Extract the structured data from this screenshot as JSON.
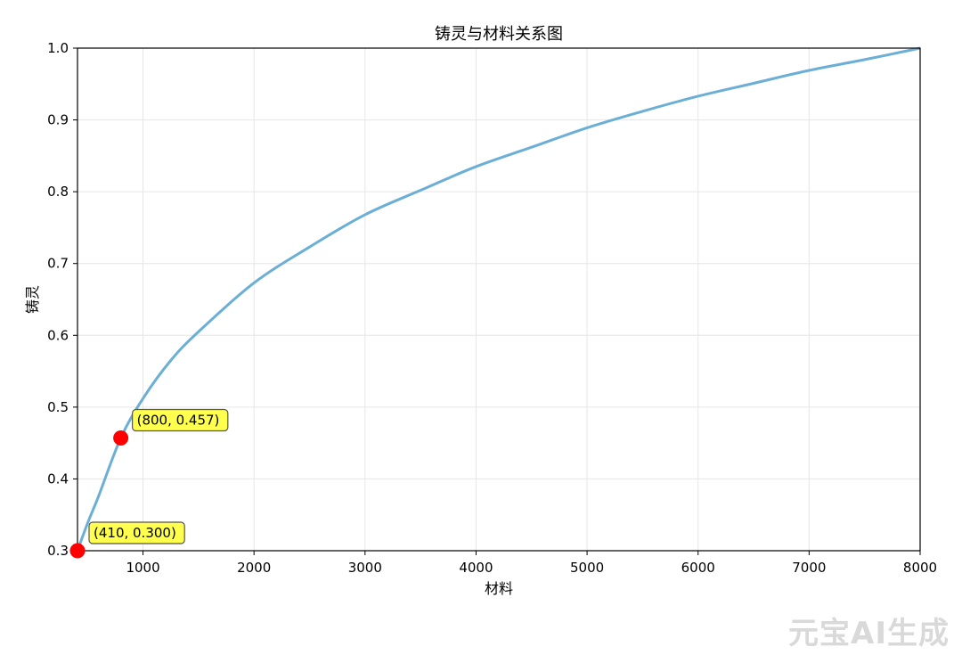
{
  "chart_data": {
    "type": "line",
    "title": "铸灵与材料关系图",
    "xlabel": "材料",
    "ylabel": "铸灵",
    "xlim": [
      410,
      8000
    ],
    "ylim": [
      0.3,
      1.0
    ],
    "x_ticks": [
      1000,
      2000,
      3000,
      4000,
      5000,
      6000,
      7000,
      8000
    ],
    "x_tick_labels": [
      "1000",
      "2000",
      "3000",
      "4000",
      "5000",
      "6000",
      "7000",
      "8000"
    ],
    "y_ticks": [
      0.3,
      0.4,
      0.5,
      0.6,
      0.7,
      0.8,
      0.9,
      1.0
    ],
    "y_tick_labels": [
      "0.3",
      "0.4",
      "0.5",
      "0.6",
      "0.7",
      "0.8",
      "0.9",
      "1.0"
    ],
    "grid": true,
    "series": [
      {
        "color": "#6baed6",
        "x": [
          410,
          500,
          600,
          800,
          1000,
          1250,
          1500,
          2000,
          2500,
          3000,
          3500,
          4000,
          4500,
          5000,
          5500,
          6000,
          6500,
          7000,
          7500,
          8000
        ],
        "y": [
          0.3,
          0.338,
          0.376,
          0.457,
          0.512,
          0.565,
          0.605,
          0.673,
          0.723,
          0.768,
          0.802,
          0.835,
          0.862,
          0.889,
          0.912,
          0.933,
          0.951,
          0.969,
          0.984,
          1.0
        ]
      }
    ],
    "points": [
      {
        "x": 410,
        "y": 0.3,
        "label": "(410, 0.300)"
      },
      {
        "x": 800,
        "y": 0.457,
        "label": "(800, 0.457)"
      }
    ],
    "colors": {
      "line": "#6baed6",
      "point": "#ff0000",
      "annotation_fill": "#ffff4d",
      "annotation_border": "#555555",
      "grid": "#e6e6e6"
    }
  },
  "watermark": "元宝AI生成"
}
